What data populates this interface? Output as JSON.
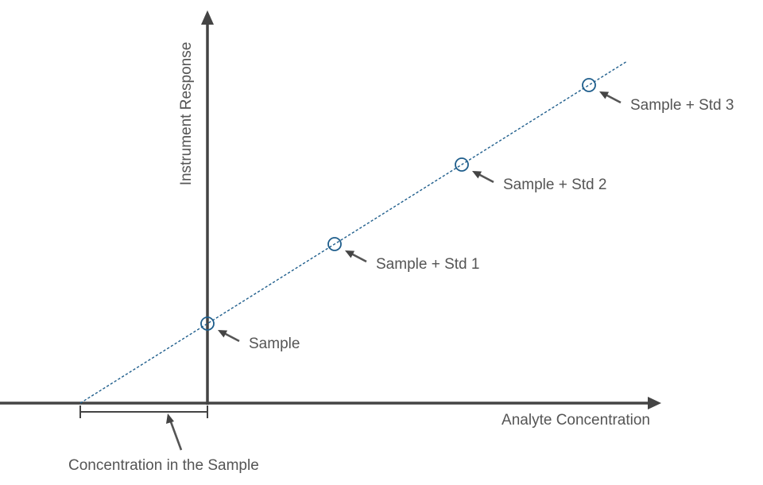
{
  "chart_data": {
    "type": "scatter",
    "title": "",
    "xlabel": "Analyte Concentration",
    "ylabel": "Instrument Response",
    "grid": false,
    "legend": "none",
    "x_intercept_annotation": "Concentration in the Sample",
    "points": [
      {
        "label": "Sample",
        "x": 0,
        "y": 1
      },
      {
        "label": "Sample + Std 1",
        "x": 1,
        "y": 2
      },
      {
        "label": "Sample + Std 2",
        "x": 2,
        "y": 3
      },
      {
        "label": "Sample + Std 3",
        "x": 3,
        "y": 4
      }
    ],
    "fit_line": {
      "x_start": -1,
      "x_end": 3.3,
      "style": "dashed"
    },
    "colors": {
      "series": "#1f5e8c",
      "axes": "#444444",
      "text": "#555555"
    }
  }
}
